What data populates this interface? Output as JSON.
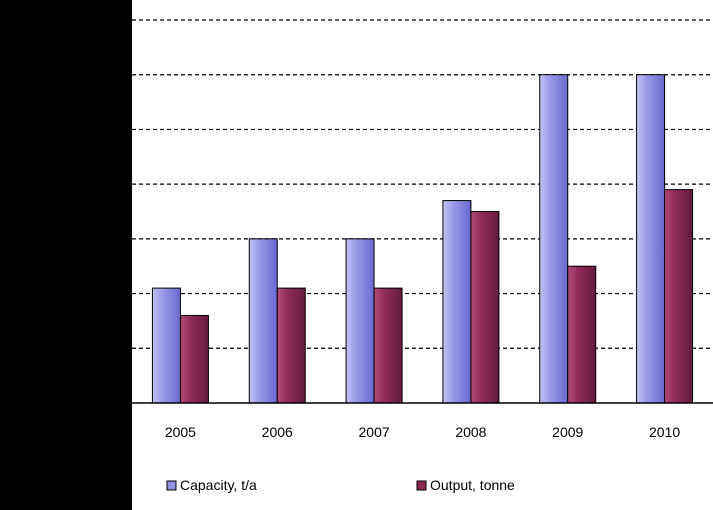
{
  "chart_data": {
    "type": "bar",
    "categories": [
      "2005",
      "2006",
      "2007",
      "2008",
      "2009",
      "2010"
    ],
    "series": [
      {
        "name": "Capacity, t/a",
        "color": "#8f8fe6",
        "values": [
          21,
          30,
          30,
          37,
          60,
          60
        ]
      },
      {
        "name": "Output, tonne",
        "color": "#8a2a55",
        "values": [
          16,
          21,
          21,
          35,
          25,
          39
        ]
      }
    ],
    "ylim": [
      0,
      70
    ],
    "grid": true,
    "legend_position": "bottom",
    "title": "",
    "xlabel": "",
    "ylabel": ""
  },
  "colors": {
    "axis_panel": "#000000",
    "gridline": "#000000",
    "plot_background": "#ffffff"
  }
}
